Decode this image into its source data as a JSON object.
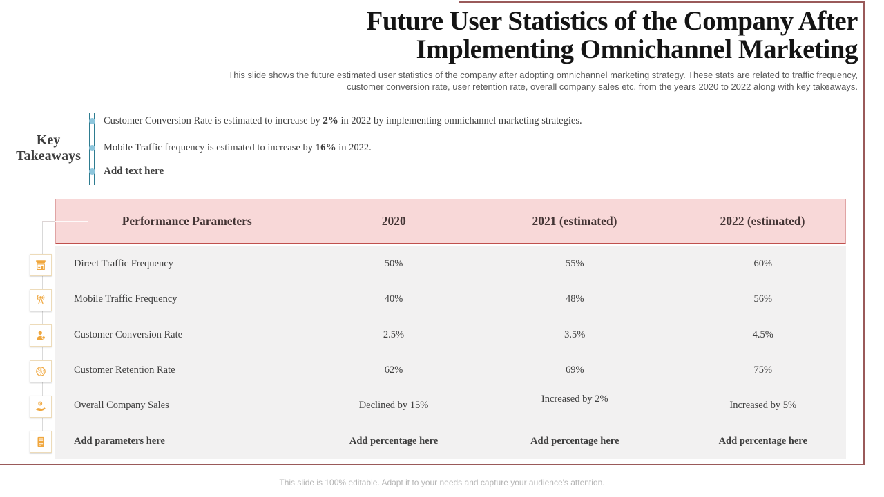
{
  "slide": {
    "title_lines": [
      "Future User Statistics of the Company After",
      "Implementing Omnichannel Marketing"
    ],
    "subtitle_lines": [
      "This slide shows the future estimated user statistics of the company after adopting omnichannel marketing strategy. These stats are related to traffic frequency,",
      "customer conversion rate, user retention rate, overall company sales etc. from the years 2020 to 2022 along with key takeaways."
    ],
    "footer": "This slide is 100% editable. Adapt it to your needs and capture your audience's attention."
  },
  "key_takeaways": {
    "heading": "Key Takeaways",
    "bullets": [
      {
        "pre": "Customer Conversion Rate is estimated to increase by ",
        "bold": "2%",
        "post": " in 2022 by implementing omnichannel marketing strategies."
      },
      {
        "pre": "Mobile Traffic frequency is estimated  to increase by ",
        "bold": "16%",
        "post": " in 2022."
      },
      {
        "pre": "",
        "bold": "Add text here",
        "post": ""
      }
    ]
  },
  "table": {
    "headers": [
      "Performance Parameters",
      "2020",
      "2021 (estimated)",
      "2022 (estimated)"
    ],
    "rows": [
      {
        "icon": "store-icon",
        "parameter": "Direct Traffic Frequency",
        "values": [
          "50%",
          "55%",
          "60%"
        ],
        "bold": false
      },
      {
        "icon": "antenna-icon",
        "parameter": "Mobile Traffic Frequency",
        "values": [
          "40%",
          "48%",
          "56%"
        ],
        "bold": false
      },
      {
        "icon": "user-icon",
        "parameter": "Customer Conversion Rate",
        "values": [
          "2.5%",
          "3.5%",
          "4.5%"
        ],
        "bold": false
      },
      {
        "icon": "coin-icon",
        "parameter": "Customer Retention Rate",
        "values": [
          "62%",
          "69%",
          "75%"
        ],
        "bold": false
      },
      {
        "icon": "hand-coin-icon",
        "parameter": "Overall Company Sales",
        "values": [
          "Declined by 15%",
          "Increased by 2%",
          "Increased by 5%"
        ],
        "bold": false
      },
      {
        "icon": "document-icon",
        "parameter": "Add parameters here",
        "values": [
          "Add percentage here",
          "Add percentage here",
          "Add percentage here"
        ],
        "bold": true
      }
    ]
  },
  "colors": {
    "frame_border": "#9a5a5a",
    "header_bg": "#f8d8d8",
    "header_bottom_border": "#c0504d",
    "body_bg": "#f2f1f1",
    "icon_orange": "#f0a73e",
    "takeaway_teal": "#2e7c90",
    "bullet_blue": "#8ec6dc",
    "text_dark": "#3e3e3e"
  }
}
